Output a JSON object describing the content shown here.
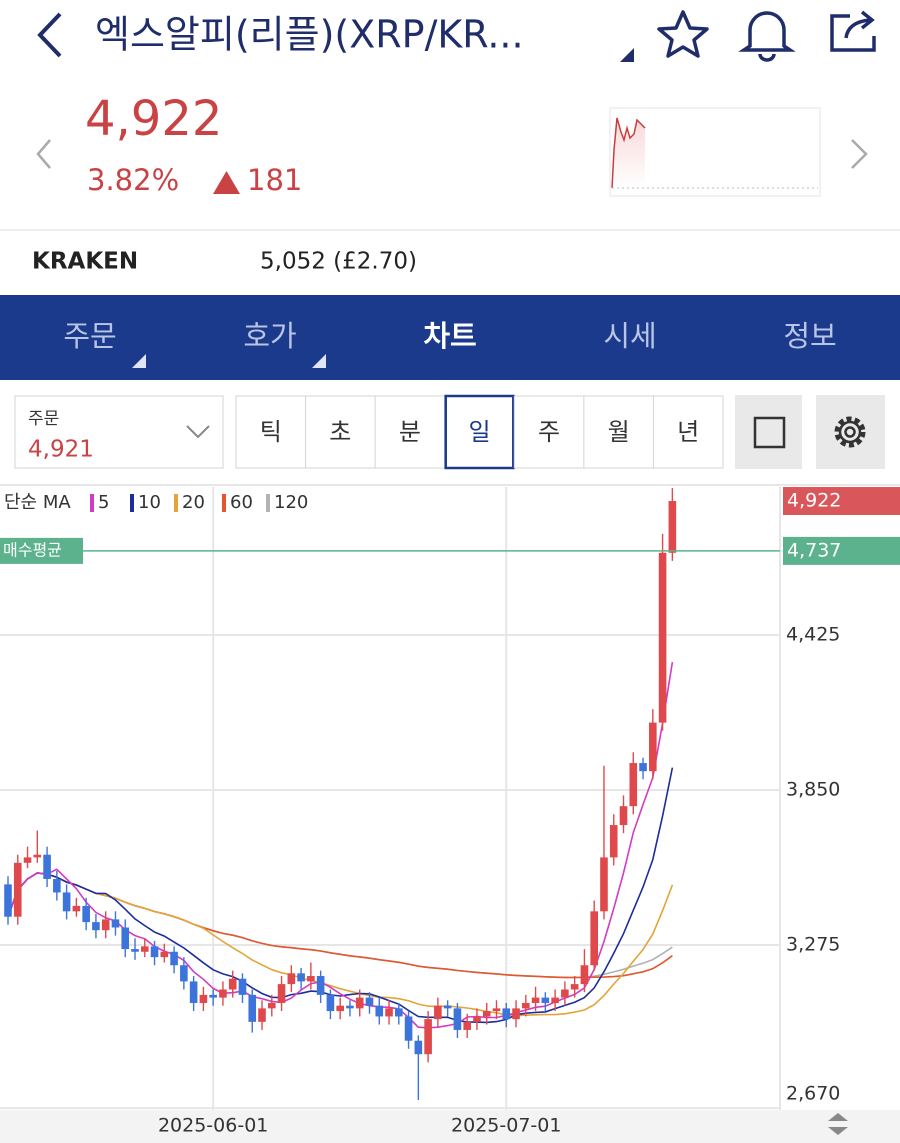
{
  "header": {
    "title": "엑스알피(리플)(XRP/KR..."
  },
  "quote": {
    "price": "4,922",
    "change_pct": "3.82%",
    "change": "181"
  },
  "exchange": {
    "name": "KRAKEN",
    "price": "5,052 (£2.70)"
  },
  "tabs": [
    "주문",
    "호가",
    "차트",
    "시세",
    "정보"
  ],
  "order_select": {
    "label": "주문",
    "value": "4,921"
  },
  "periods": [
    "틱",
    "초",
    "분",
    "일",
    "주",
    "월",
    "년"
  ],
  "chart_data": {
    "type": "candlestick",
    "categories": [
      null,
      null,
      null,
      null,
      null,
      null,
      null,
      null,
      null,
      null,
      null,
      null,
      null,
      null,
      null,
      null,
      null,
      null,
      null,
      null,
      null,
      "2025-06-01",
      null,
      null,
      null,
      null,
      null,
      null,
      null,
      null,
      null,
      null,
      null,
      null,
      null,
      null,
      null,
      null,
      null,
      null,
      null,
      null,
      null,
      null,
      null,
      null,
      null,
      null,
      null,
      null,
      null,
      "2025-07-01",
      null,
      null,
      null,
      null,
      null,
      null,
      null,
      null,
      null,
      null,
      null,
      null,
      null,
      null,
      null,
      null,
      null
    ],
    "open": [
      3500,
      3380,
      3580,
      3600,
      3610,
      3520,
      3470,
      3400,
      3420,
      3360,
      3330,
      3370,
      3340,
      3260,
      3250,
      3270,
      3230,
      3250,
      3200,
      3140,
      3060,
      3090,
      3080,
      3110,
      3150,
      3090,
      2990,
      3040,
      3060,
      3130,
      3170,
      3140,
      3160,
      3090,
      3030,
      3050,
      3040,
      3080,
      3050,
      3010,
      3040,
      3010,
      2920,
      2870,
      3000,
      3050,
      3040,
      2960,
      2990,
      3010,
      3030,
      3040,
      3000,
      3040,
      3060,
      3080,
      3060,
      3080,
      3110,
      3130,
      3200,
      3400,
      3600,
      3720,
      3790,
      3950,
      3920,
      4100,
      4730
    ],
    "high": [
      3530,
      3610,
      3640,
      3700,
      3640,
      3550,
      3500,
      3450,
      3450,
      3390,
      3400,
      3400,
      3370,
      3300,
      3300,
      3290,
      3280,
      3270,
      3230,
      3160,
      3120,
      3110,
      3140,
      3180,
      3170,
      3110,
      3070,
      3090,
      3160,
      3200,
      3190,
      3210,
      3180,
      3110,
      3080,
      3070,
      3110,
      3100,
      3080,
      3070,
      3060,
      3030,
      2940,
      3030,
      3080,
      3070,
      3060,
      3020,
      3040,
      3060,
      3070,
      3060,
      3070,
      3090,
      3120,
      3100,
      3110,
      3140,
      3160,
      3260,
      3440,
      3940,
      3760,
      3830,
      3990,
      3970,
      4150,
      4800,
      4970
    ],
    "low": [
      3350,
      3350,
      3560,
      3580,
      3490,
      3440,
      3370,
      3380,
      3330,
      3300,
      3300,
      3310,
      3230,
      3220,
      3230,
      3200,
      3210,
      3170,
      3110,
      3030,
      3030,
      3050,
      3050,
      3080,
      3060,
      2950,
      2960,
      3010,
      3030,
      3100,
      3110,
      3110,
      3060,
      3000,
      3000,
      3010,
      3010,
      3020,
      2980,
      2980,
      2980,
      2890,
      2700,
      2840,
      2970,
      3010,
      2930,
      2930,
      2960,
      2980,
      3000,
      2970,
      2970,
      3010,
      3030,
      3030,
      3030,
      3050,
      3080,
      3100,
      3180,
      3370,
      3570,
      3690,
      3760,
      3890,
      3890,
      4070,
      4700
    ],
    "close": [
      3380,
      3580,
      3600,
      3610,
      3520,
      3470,
      3400,
      3420,
      3360,
      3330,
      3370,
      3340,
      3260,
      3250,
      3270,
      3230,
      3250,
      3200,
      3140,
      3060,
      3090,
      3080,
      3110,
      3150,
      3090,
      2990,
      3040,
      3060,
      3130,
      3170,
      3140,
      3160,
      3090,
      3030,
      3050,
      3040,
      3080,
      3050,
      3010,
      3040,
      3010,
      2920,
      2870,
      3000,
      3050,
      3040,
      2960,
      2990,
      3010,
      3030,
      3040,
      3000,
      3040,
      3060,
      3080,
      3060,
      3080,
      3110,
      3130,
      3200,
      3400,
      3600,
      3720,
      3790,
      3950,
      3920,
      4100,
      4730,
      4922
    ],
    "up_color": "#e0494b",
    "down_color": "#3d74dc",
    "ylim": [
      2663,
      4974
    ],
    "yticks": [
      {
        "value": 2670,
        "label": "2,670"
      },
      {
        "value": 3275,
        "label": "3,275"
      },
      {
        "value": 3850,
        "label": "3,850"
      },
      {
        "value": 4425,
        "label": "4,425"
      }
    ],
    "grid": true,
    "ma_label": "단순 MA",
    "ma": [
      {
        "name": "5",
        "color": "#d23cc4"
      },
      {
        "name": "10",
        "color": "#1c2d9c"
      },
      {
        "name": "20",
        "color": "#e3a43a"
      },
      {
        "name": "60",
        "color": "#e2572e"
      },
      {
        "name": "120",
        "color": "#b3b3b3"
      }
    ],
    "avg_price": {
      "name": "매수평균",
      "value": 4737,
      "label": "4,737",
      "color": "#5cb28c"
    },
    "last_price": {
      "value": 4922,
      "label": "4,922",
      "color": "#d9575a"
    }
  }
}
